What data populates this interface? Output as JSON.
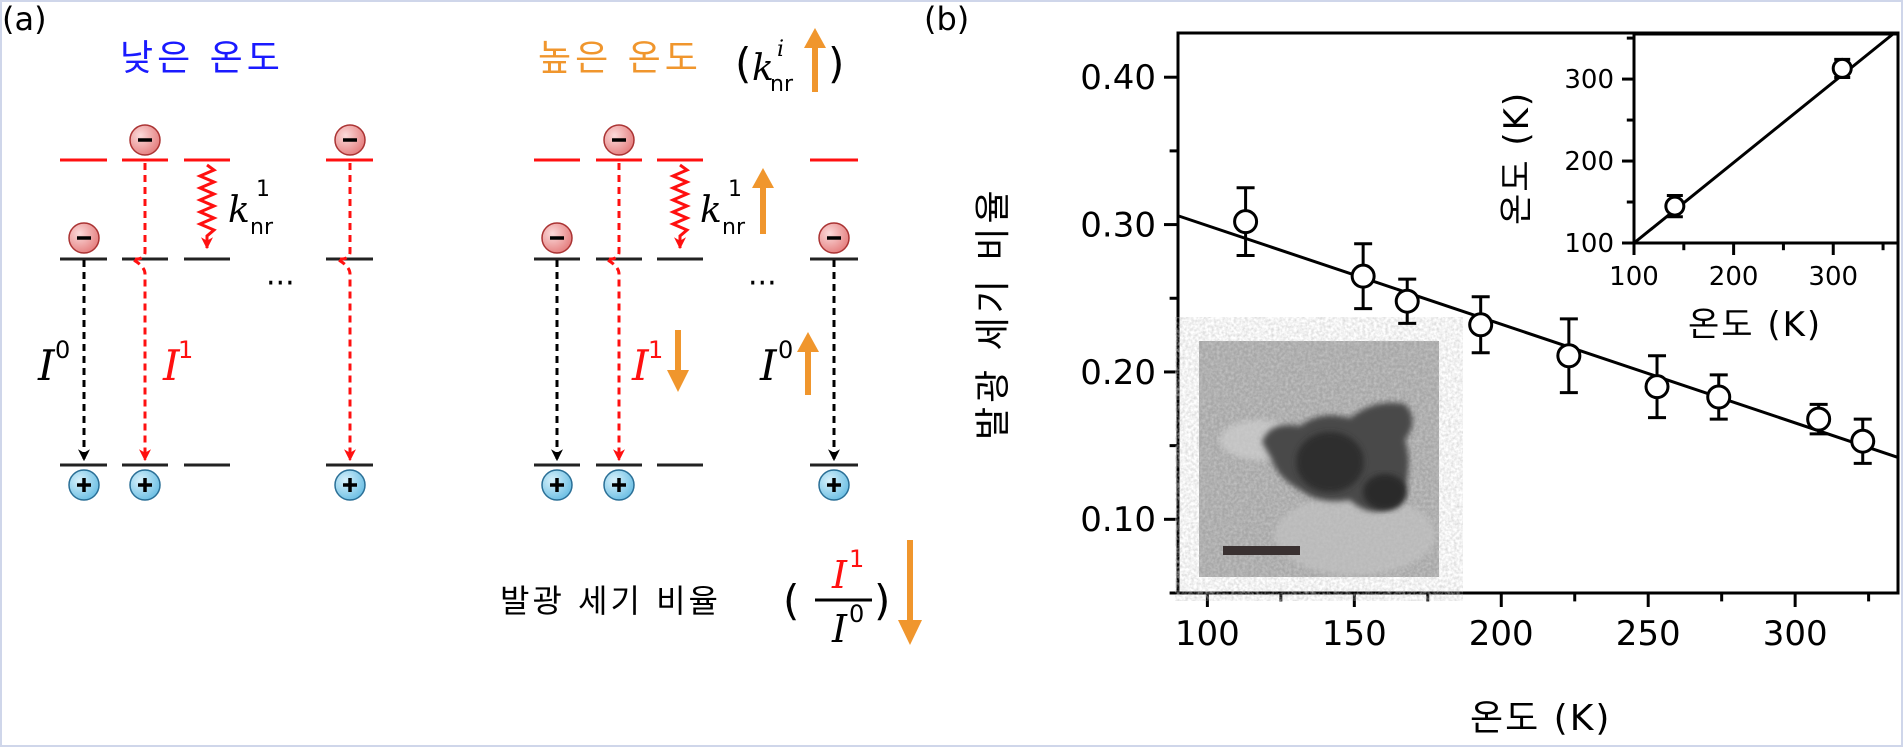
{
  "panel_a": {
    "label": "(a)",
    "low_temp_title": "낮은 온도",
    "high_temp_title": "높은 온도",
    "k_nr_i": {
      "k": "k",
      "sub": "nr",
      "sup": "i"
    },
    "k_nr_1": {
      "k": "k",
      "sub": "nr",
      "sup": "1"
    },
    "I0": {
      "I": "I",
      "sup": "0"
    },
    "I1": {
      "I": "I",
      "sup": "1"
    },
    "ellipsis": "···",
    "electron_symbol": "−",
    "hole_symbol": "+",
    "ratio_label": "발광 세기 비율",
    "ratio_numerator": {
      "I": "I",
      "sup": "1"
    },
    "ratio_denominator": {
      "I": "I",
      "sup": "0"
    },
    "open_paren": "(",
    "close_paren": ")",
    "colors": {
      "title_low": "#1a1aff",
      "title_high": "#f0962d",
      "red": "#ff1010",
      "black": "#000000",
      "arrow_orange": "#f0962d",
      "electron_fill": "#f2a0a0",
      "hole_fill": "#8fd0ee"
    }
  },
  "panel_b": {
    "label": "(b)",
    "inset_photo": "TEM image of nanoparticle with scale bar"
  },
  "chart_data": [
    {
      "type": "scatter",
      "title": "",
      "xlabel": "온도 (K)",
      "ylabel": "발광 세기 비율",
      "xlim": [
        90,
        335
      ],
      "ylim": [
        0.05,
        0.43
      ],
      "xticks": [
        100,
        150,
        200,
        250,
        300
      ],
      "yticks": [
        0.1,
        0.2,
        0.3,
        0.4
      ],
      "xtick_labels": [
        "100",
        "150",
        "200",
        "250",
        "300"
      ],
      "ytick_labels": [
        "0.10",
        "0.20",
        "0.30",
        "0.40"
      ],
      "series": [
        {
          "x": [
            113,
            153,
            168,
            193,
            223,
            253,
            274,
            308,
            323
          ],
          "y": [
            0.302,
            0.265,
            0.248,
            0.232,
            0.211,
            0.19,
            0.183,
            0.168,
            0.153
          ],
          "yerr": [
            0.023,
            0.022,
            0.015,
            0.019,
            0.025,
            0.021,
            0.015,
            0.01,
            0.015
          ]
        }
      ],
      "fit_line": {
        "x": [
          90,
          335
        ],
        "y": [
          0.306,
          0.142
        ]
      },
      "grid": false
    },
    {
      "type": "scatter",
      "title": "",
      "xlabel": "온도 (K)",
      "ylabel": "온도 (K)",
      "xlim": [
        100,
        365
      ],
      "ylim": [
        100,
        355
      ],
      "xticks": [
        100,
        200,
        300
      ],
      "yticks": [
        100,
        200,
        300
      ],
      "xtick_labels": [
        "100",
        "200",
        "300"
      ],
      "ytick_labels": [
        "100",
        "200",
        "300"
      ],
      "series": [
        {
          "x": [
            141,
            309
          ],
          "y": [
            145,
            313
          ],
          "yerr": [
            13,
            11
          ]
        }
      ],
      "fit_line": {
        "x": [
          100,
          360
        ],
        "y": [
          100,
          355
        ]
      },
      "grid": false
    }
  ]
}
